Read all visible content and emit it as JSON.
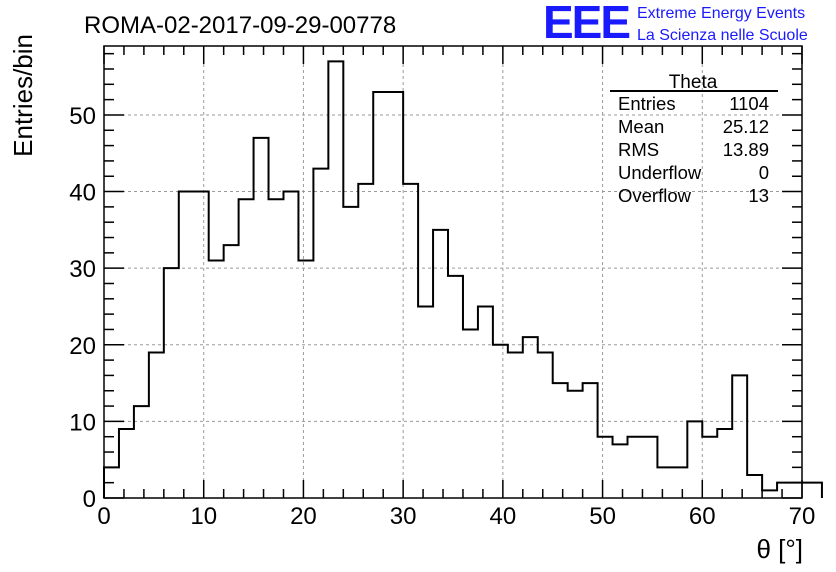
{
  "header": {
    "run_title": "ROMA-02-2017-09-29-00778",
    "logo_text": "EEE",
    "logo_line1": "Extreme Energy Events",
    "logo_line2": "La Scienza nelle Scuole",
    "logo_color": "#1a1aff"
  },
  "stats": {
    "title": "Theta",
    "rows": [
      {
        "label": "Entries",
        "value": "1104"
      },
      {
        "label": "Mean",
        "value": "25.12"
      },
      {
        "label": "RMS",
        "value": "13.89"
      },
      {
        "label": "Underflow",
        "value": "0"
      },
      {
        "label": "Overflow",
        "value": "13"
      }
    ]
  },
  "chart_data": {
    "type": "bar",
    "style": "step-histogram",
    "title": "ROMA-02-2017-09-29-00778",
    "xlabel": "θ [°]",
    "ylabel": "Entries/bin",
    "xlim": [
      0,
      70
    ],
    "ylim": [
      0,
      59
    ],
    "grid": true,
    "x_ticks": [
      "0",
      "10",
      "20",
      "30",
      "40",
      "50",
      "60",
      "70"
    ],
    "y_ticks": [
      "0",
      "10",
      "20",
      "30",
      "40",
      "50"
    ],
    "bin_width": 1.5,
    "bin_start": 0,
    "values": [
      4,
      9,
      12,
      19,
      30,
      40,
      40,
      31,
      33,
      39,
      47,
      39,
      40,
      31,
      43,
      57,
      38,
      41,
      53,
      53,
      41,
      25,
      35,
      29,
      22,
      25,
      20,
      19,
      21,
      19,
      15,
      14,
      15,
      8,
      7,
      8,
      8,
      4,
      4,
      10,
      8,
      9,
      16,
      3,
      1,
      2,
      2,
      2
    ]
  }
}
